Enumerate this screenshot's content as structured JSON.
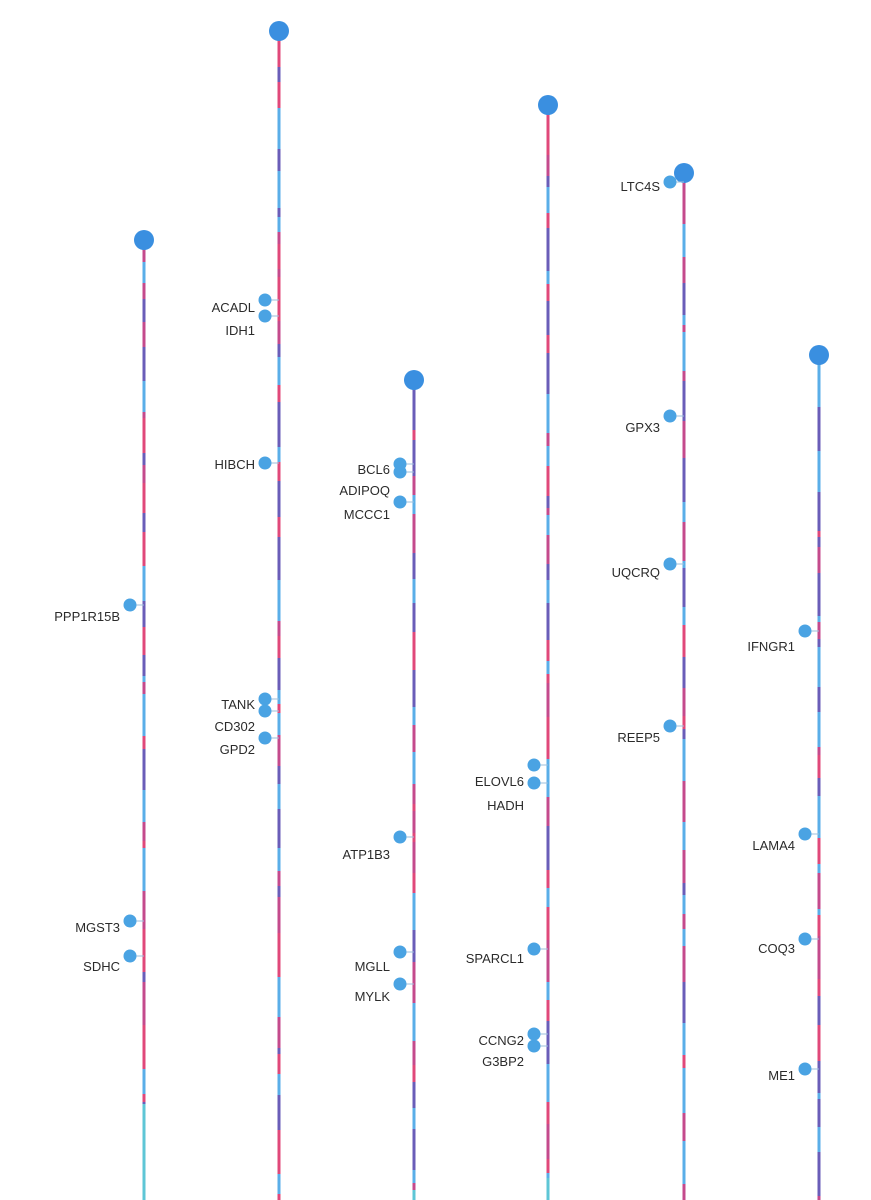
{
  "diagram": {
    "type": "chromosome-gene-lollipop",
    "colors": {
      "head": "#3a8fe0",
      "gene_dot": "#4aa3e3",
      "connector": "#9bbfdc",
      "segment_palette": [
        "#e0487a",
        "#6a5db8",
        "#5aaee8",
        "#c44a8c"
      ],
      "tail_teal": "#5ec6d6",
      "label": "#2b2b2b"
    },
    "stems": [
      {
        "id": "stem-1",
        "genes": [
          {
            "label": "PPP1R15B"
          },
          {
            "label": "MGST3"
          },
          {
            "label": "SDHC"
          }
        ]
      },
      {
        "id": "stem-2",
        "genes": [
          {
            "label": "ACADL"
          },
          {
            "label": "IDH1"
          },
          {
            "label": "HIBCH"
          },
          {
            "label": "TANK"
          },
          {
            "label": "CD302"
          },
          {
            "label": "GPD2"
          }
        ]
      },
      {
        "id": "stem-3",
        "genes": [
          {
            "label": "BCL6"
          },
          {
            "label": "ADIPOQ"
          },
          {
            "label": "MCCC1"
          },
          {
            "label": "ATP1B3"
          },
          {
            "label": "MGLL"
          },
          {
            "label": "MYLK"
          }
        ]
      },
      {
        "id": "stem-4",
        "genes": [
          {
            "label": "ELOVL6"
          },
          {
            "label": "HADH"
          },
          {
            "label": "SPARCL1"
          },
          {
            "label": "CCNG2"
          },
          {
            "label": "G3BP2"
          }
        ]
      },
      {
        "id": "stem-5",
        "genes": [
          {
            "label": "LTC4S"
          },
          {
            "label": "GPX3"
          },
          {
            "label": "UQCRQ"
          },
          {
            "label": "REEP5"
          }
        ]
      },
      {
        "id": "stem-6",
        "genes": [
          {
            "label": "IFNGR1"
          },
          {
            "label": "LAMA4"
          },
          {
            "label": "COQ3"
          },
          {
            "label": "ME1"
          }
        ]
      }
    ]
  }
}
